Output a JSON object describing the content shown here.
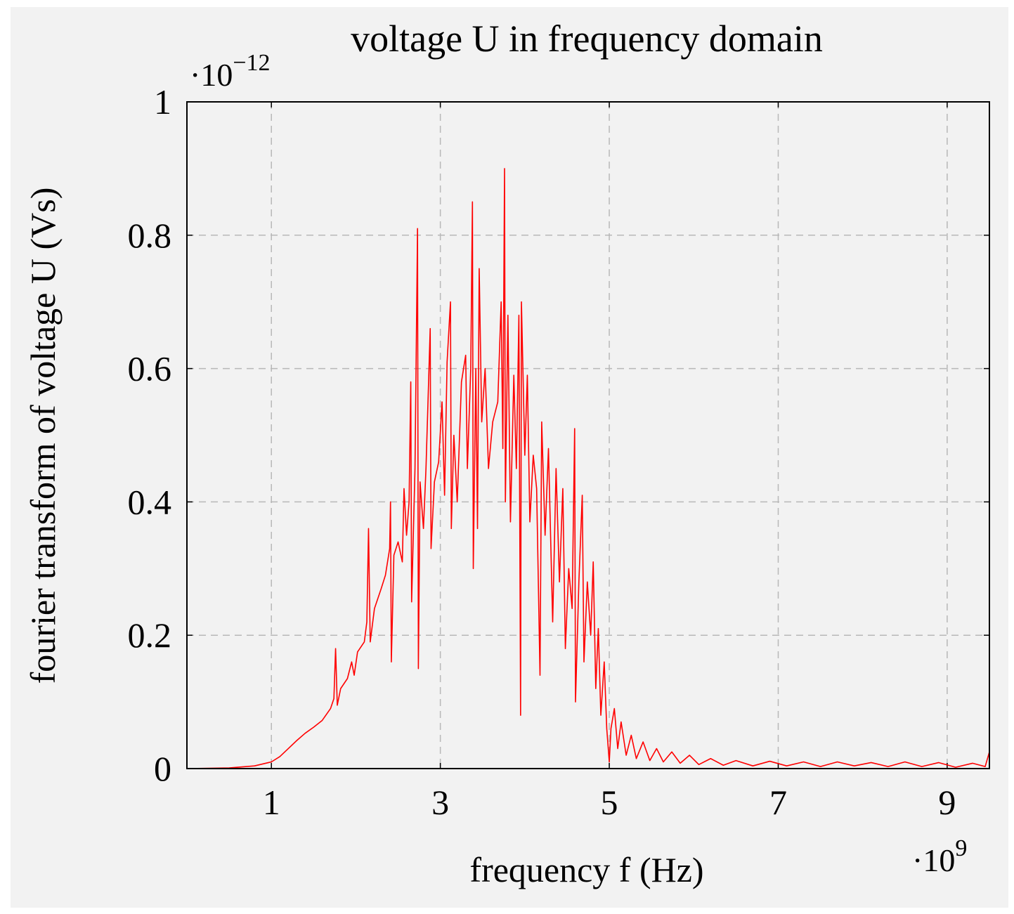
{
  "chart_data": {
    "type": "line",
    "title": "voltage U in frequency domain",
    "x_label": "frequency f (Hz)",
    "y_label": "fourier transform of voltage U (Vs)",
    "x_multiplier": {
      "base": "·10",
      "exponent": "9"
    },
    "y_multiplier": {
      "base": "·10",
      "exponent": "−12"
    },
    "xlim": [
      0,
      9.5
    ],
    "ylim": [
      0,
      1
    ],
    "xticks": [
      1,
      3,
      5,
      7,
      9
    ],
    "yticks": [
      0,
      0.2,
      0.4,
      0.6,
      0.8,
      1
    ],
    "grid": true,
    "x": [
      0,
      0.5,
      0.8,
      1.0,
      1.1,
      1.2,
      1.3,
      1.4,
      1.5,
      1.6,
      1.7,
      1.74,
      1.76,
      1.78,
      1.82,
      1.9,
      1.95,
      1.98,
      2.02,
      2.1,
      2.13,
      2.15,
      2.17,
      2.22,
      2.3,
      2.35,
      2.4,
      2.41,
      2.42,
      2.45,
      2.5,
      2.55,
      2.57,
      2.6,
      2.63,
      2.65,
      2.66,
      2.7,
      2.73,
      2.74,
      2.76,
      2.8,
      2.83,
      2.88,
      2.89,
      2.93,
      2.98,
      3.02,
      3.05,
      3.08,
      3.12,
      3.13,
      3.16,
      3.2,
      3.25,
      3.3,
      3.32,
      3.36,
      3.38,
      3.39,
      3.42,
      3.44,
      3.46,
      3.49,
      3.53,
      3.57,
      3.62,
      3.68,
      3.72,
      3.74,
      3.76,
      3.77,
      3.8,
      3.83,
      3.87,
      3.9,
      3.93,
      3.95,
      3.96,
      4.0,
      4.03,
      4.06,
      4.1,
      4.14,
      4.18,
      4.2,
      4.24,
      4.28,
      4.33,
      4.37,
      4.41,
      4.45,
      4.48,
      4.52,
      4.56,
      4.59,
      4.6,
      4.64,
      4.68,
      4.7,
      4.74,
      4.78,
      4.81,
      4.84,
      4.87,
      4.9,
      4.94,
      4.97,
      5.0,
      5.02,
      5.06,
      5.1,
      5.14,
      5.2,
      5.26,
      5.32,
      5.4,
      5.48,
      5.56,
      5.64,
      5.74,
      5.84,
      5.95,
      6.06,
      6.2,
      6.35,
      6.5,
      6.7,
      6.9,
      7.1,
      7.3,
      7.5,
      7.7,
      7.9,
      8.1,
      8.3,
      8.5,
      8.7,
      8.9,
      9.1,
      9.3,
      9.45,
      9.5
    ],
    "series": [
      {
        "color": "#ff0000",
        "values": [
          0,
          0.001,
          0.004,
          0.01,
          0.018,
          0.03,
          0.042,
          0.053,
          0.062,
          0.072,
          0.09,
          0.105,
          0.18,
          0.095,
          0.12,
          0.135,
          0.16,
          0.14,
          0.175,
          0.19,
          0.22,
          0.36,
          0.19,
          0.24,
          0.27,
          0.29,
          0.33,
          0.4,
          0.16,
          0.32,
          0.34,
          0.31,
          0.42,
          0.35,
          0.4,
          0.58,
          0.25,
          0.45,
          0.81,
          0.15,
          0.43,
          0.36,
          0.45,
          0.66,
          0.33,
          0.43,
          0.46,
          0.55,
          0.41,
          0.61,
          0.7,
          0.36,
          0.5,
          0.4,
          0.58,
          0.62,
          0.45,
          0.6,
          0.85,
          0.3,
          0.6,
          0.36,
          0.75,
          0.52,
          0.6,
          0.45,
          0.52,
          0.55,
          0.7,
          0.48,
          0.9,
          0.4,
          0.68,
          0.37,
          0.59,
          0.45,
          0.68,
          0.08,
          0.7,
          0.47,
          0.59,
          0.37,
          0.47,
          0.42,
          0.14,
          0.52,
          0.35,
          0.48,
          0.22,
          0.45,
          0.28,
          0.42,
          0.18,
          0.3,
          0.24,
          0.51,
          0.1,
          0.28,
          0.41,
          0.16,
          0.28,
          0.2,
          0.31,
          0.12,
          0.21,
          0.08,
          0.16,
          0.06,
          0.01,
          0.06,
          0.09,
          0.03,
          0.07,
          0.02,
          0.05,
          0.015,
          0.04,
          0.012,
          0.03,
          0.01,
          0.025,
          0.008,
          0.02,
          0.006,
          0.015,
          0.005,
          0.012,
          0.004,
          0.011,
          0.004,
          0.01,
          0.003,
          0.01,
          0.004,
          0.009,
          0.003,
          0.01,
          0.003,
          0.009,
          0.002,
          0.008,
          0.003,
          0.025
        ]
      }
    ]
  }
}
